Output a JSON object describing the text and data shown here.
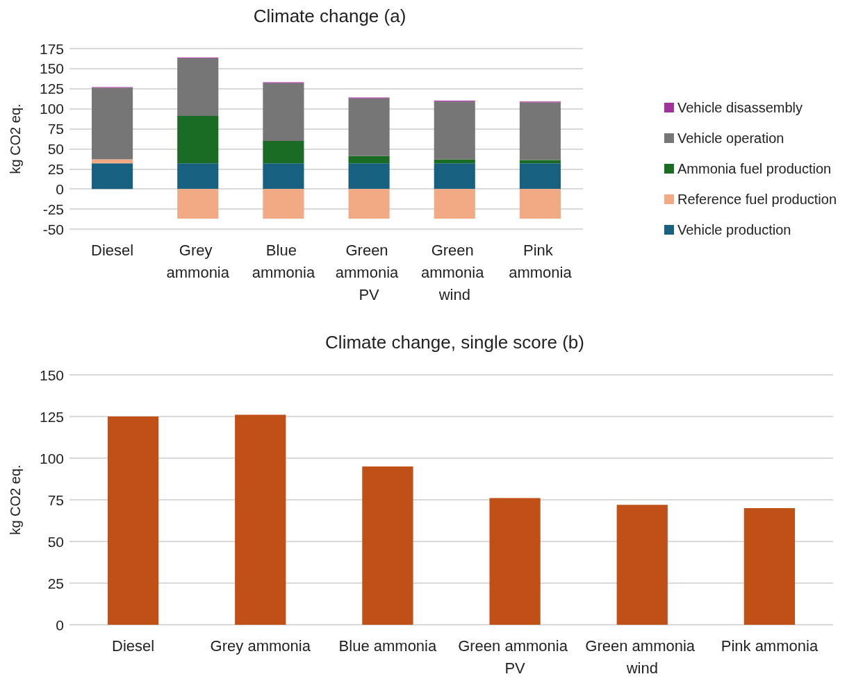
{
  "chart_data": [
    {
      "type": "bar",
      "title": "Climate change (a)",
      "ylabel": "kg CO2 eq.",
      "categories": [
        "Diesel",
        "Grey ammonia",
        "Blue ammonia",
        "Green ammonia PV",
        "Green ammonia wind",
        "Pink ammonia"
      ],
      "stacked": true,
      "series": [
        {
          "name": "Vehicle production",
          "color": "#17607f",
          "values": [
            32,
            32,
            32,
            32,
            32,
            32
          ]
        },
        {
          "name": "Reference fuel production",
          "color": "#f2aa84",
          "values": [
            5,
            -37,
            -37,
            -37,
            -37,
            -37
          ]
        },
        {
          "name": "Ammonia fuel production",
          "color": "#1a6b24",
          "values": [
            0,
            59,
            28,
            9,
            5,
            4
          ]
        },
        {
          "name": "Vehicle operation",
          "color": "#767676",
          "values": [
            89,
            72,
            72,
            72,
            72,
            72
          ]
        },
        {
          "name": "Vehicle disassembly",
          "color": "#a0329a",
          "values": [
            1,
            1,
            1,
            1,
            1,
            1
          ]
        }
      ],
      "ylim": [
        -50,
        175
      ],
      "yticks": [
        -50,
        -25,
        0,
        25,
        50,
        75,
        100,
        125,
        150,
        175
      ],
      "grid": "y",
      "legend": "right"
    },
    {
      "type": "bar",
      "title": "Climate change, single score (b)",
      "ylabel": "kg CO2 eq.",
      "categories": [
        "Diesel",
        "Grey ammonia",
        "Blue ammonia",
        "Green ammonia PV",
        "Green ammonia wind",
        "Pink ammonia"
      ],
      "values": [
        125,
        126,
        95,
        76,
        72,
        70
      ],
      "color": "#c05016",
      "ylim": [
        0,
        150
      ],
      "yticks": [
        0,
        25,
        50,
        75,
        100,
        125,
        150
      ],
      "grid": "y"
    }
  ]
}
